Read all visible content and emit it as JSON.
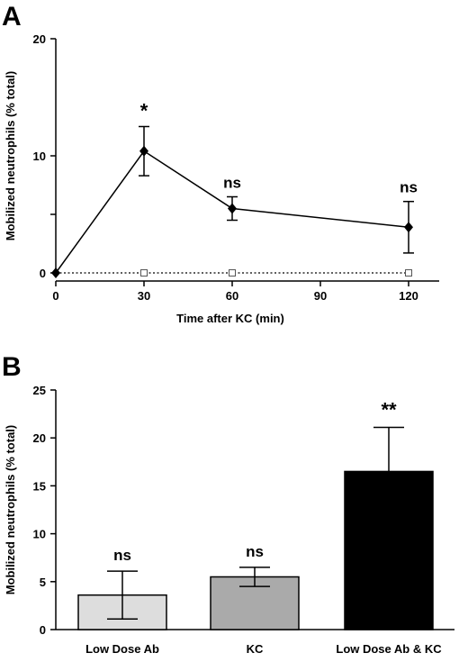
{
  "chart_data": [
    {
      "panel": "A",
      "type": "line",
      "xlabel": "Time after KC (min)",
      "ylabel": "Mobilized neutrophils (% total)",
      "xticks": [
        0,
        30,
        60,
        90,
        120
      ],
      "yticks": [
        0,
        10,
        20
      ],
      "xlim": [
        0,
        130
      ],
      "ylim": [
        0,
        20
      ],
      "series": [
        {
          "marker": "filled-diamond",
          "line": "solid",
          "x": [
            0,
            30,
            60,
            120
          ],
          "y": [
            0,
            10.4,
            5.5,
            3.9
          ],
          "error": [
            0,
            2.1,
            1.0,
            2.2
          ],
          "annotations": [
            "",
            "*",
            "ns",
            "ns"
          ]
        },
        {
          "marker": "open-square",
          "line": "dotted",
          "x": [
            0,
            30,
            60,
            120
          ],
          "y": [
            0,
            0,
            0,
            0
          ]
        }
      ]
    },
    {
      "panel": "B",
      "type": "bar",
      "ylabel": "Mobilized neutrophils (% total)",
      "categories": [
        "Low Dose Ab",
        "KC",
        "Low Dose Ab & KC"
      ],
      "values": [
        3.6,
        5.5,
        16.5
      ],
      "error": [
        2.5,
        1.0,
        4.6
      ],
      "annotations": [
        "ns",
        "ns",
        "**"
      ],
      "colors": [
        "#dddddd",
        "#aaaaaa",
        "#000000"
      ],
      "yticks": [
        0,
        5,
        10,
        15,
        20,
        25
      ],
      "ylim": [
        0,
        25
      ]
    }
  ]
}
